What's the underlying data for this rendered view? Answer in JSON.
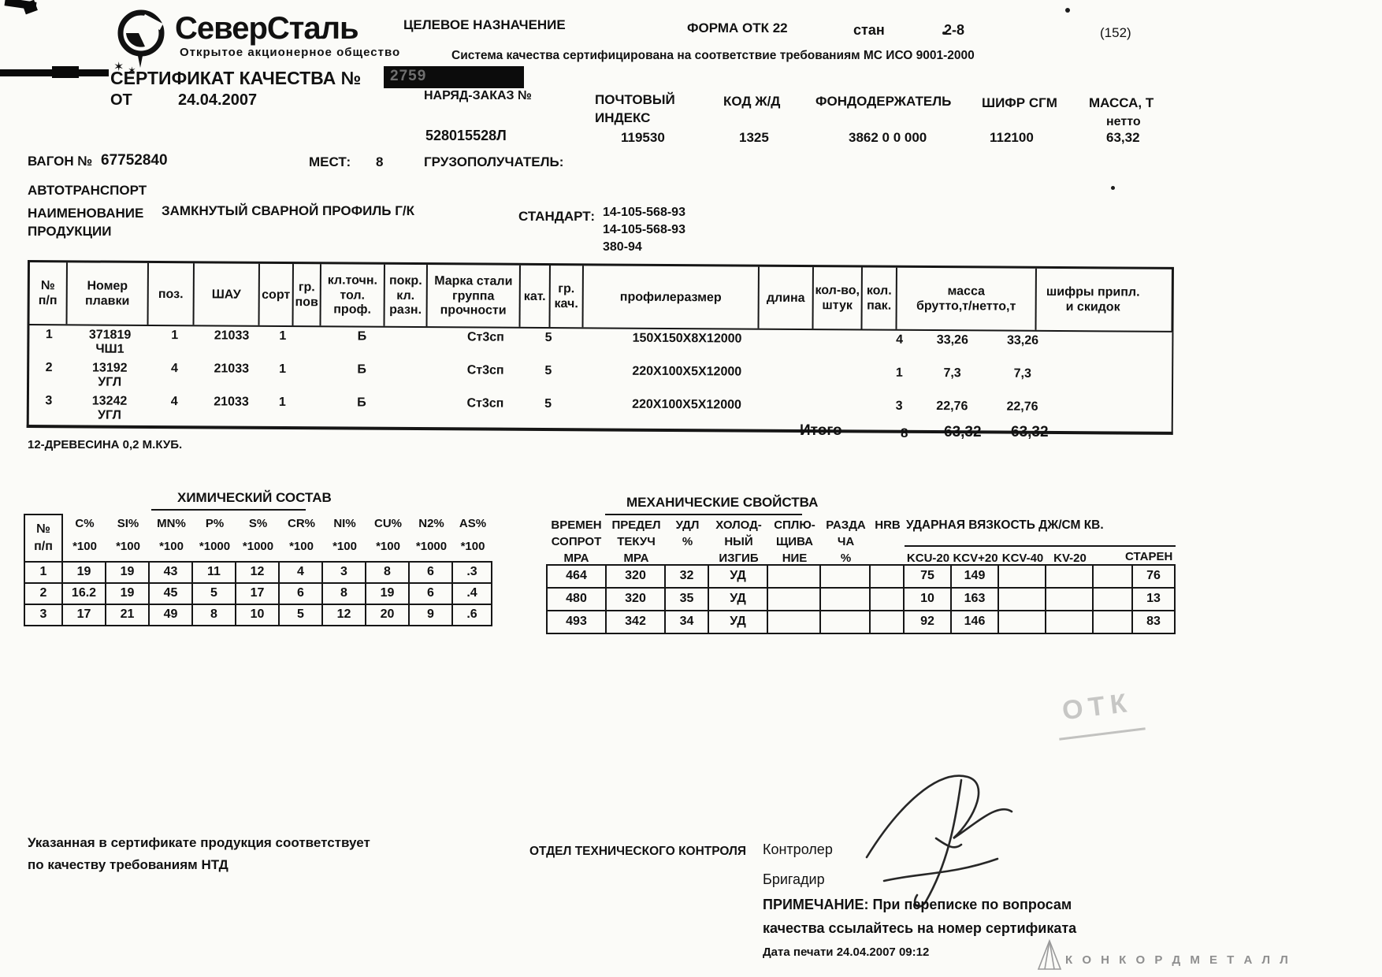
{
  "header": {
    "logo_text": "СеверСталь",
    "logo_sub": "Открытое  акционерное  общество",
    "purpose_label": "ЦЕЛЕВОЕ НАЗНАЧЕНИЕ",
    "form_label": "ФОРМА ОТК 22",
    "mill_label": "стан",
    "mill_value": "2-8",
    "page_ref": "(152)",
    "iso_line": "Система качества сертифицирована на соответствие требованиям МС ИСО 9001-2000",
    "cert_title": "СЕРТИФИКАТ КАЧЕСТВА №",
    "cert_number_visible": "2759",
    "date_label": "ОТ",
    "date_value": "24.04.2007",
    "order_label": "НАРЯД-ЗАКАЗ №",
    "order_value": "528015528Л",
    "postal_label": "ПОЧТОВЫЙ\nИНДЕКС",
    "postal_value": "119530",
    "rail_label": "КОД Ж/Д",
    "rail_value": "1325",
    "fund_label": "ФОНДОДЕРЖАТЕЛЬ",
    "fund_value": "3862 0 0 000",
    "sgm_label": "ШИФР СГМ",
    "sgm_value": "112100",
    "mass_label": "МАССА, Т",
    "mass_sub": "нетто",
    "mass_value": "63,32"
  },
  "shipment": {
    "wagon_label": "ВАГОН №",
    "wagon_value": "67752840",
    "places_label": "МЕСТ:",
    "places_value": "8",
    "consignee_label": "ГРУЗОПОЛУЧАТЕЛЬ:",
    "transport": "АВТОТРАНСПОРТ",
    "product_label": "НАИМЕНОВАНИЕ\nПРОДУКЦИИ",
    "product_value": "ЗАМКНУТЫЙ СВАРНОЙ ПРОФИЛЬ Г/К",
    "standard_label": "СТАНДАРТ:",
    "standards": [
      "14-105-568-93",
      "14-105-568-93",
      "380-94"
    ]
  },
  "main_table": {
    "headers": [
      "№\nп/п",
      "Номер\nплавки",
      "поз.",
      "ШАУ",
      "сорт",
      "гр.\nпов",
      "кл.точн.\nтол.\nпроф.",
      "покр.\nкл.\nразн.",
      "Марка стали\nгруппа\nпрочности",
      "кат.",
      "гр.\nкач.",
      "профилеразмер",
      "длина",
      "кол-во,\nштук",
      "кол.\nпак.",
      "масса\nбрутто,т/нетто,т",
      "шифры припл.\nи скидок"
    ],
    "rows": [
      [
        "1",
        "371819\nЧШ1",
        "1",
        "21033",
        "1",
        "",
        "Б",
        "",
        "Ст3сп",
        "5",
        "",
        "150X150X8X12000",
        "",
        "",
        "4",
        "33,26",
        "33,26",
        ""
      ],
      [
        "2",
        "13192\nУГЛ",
        "4",
        "21033",
        "1",
        "",
        "Б",
        "",
        "Ст3сп",
        "5",
        "",
        "220X100X5X12000",
        "",
        "",
        "1",
        "7,3",
        "7,3",
        ""
      ],
      [
        "3",
        "13242\nУГЛ",
        "4",
        "21033",
        "1",
        "",
        "Б",
        "",
        "Ст3сп",
        "5",
        "",
        "220X100X5X12000",
        "",
        "",
        "3",
        "22,76",
        "22,76",
        ""
      ]
    ],
    "total_label": "Итого",
    "total_packs": "8",
    "total_gross": "63,32",
    "total_net": "63,32"
  },
  "wood_note": "12-ДРЕВЕСИНА 0,2 М.КУБ.",
  "chem": {
    "title": "ХИМИЧЕСКИЙ СОСТАВ",
    "num_header": "№\nп/п",
    "elements": [
      "C%",
      "SI%",
      "MN%",
      "P%",
      "S%",
      "CR%",
      "NI%",
      "CU%",
      "N2%",
      "AS%"
    ],
    "multipliers": [
      "*100",
      "*100",
      "*100",
      "*1000",
      "*1000",
      "*100",
      "*100",
      "*100",
      "*1000",
      "*100"
    ],
    "rows": [
      [
        "1",
        "19",
        "19",
        "43",
        "11",
        "12",
        "4",
        "3",
        "8",
        "6",
        ".3"
      ],
      [
        "2",
        "16.2",
        "19",
        "45",
        "5",
        "17",
        "6",
        "8",
        "19",
        "6",
        ".4"
      ],
      [
        "3",
        "17",
        "21",
        "49",
        "8",
        "10",
        "5",
        "12",
        "20",
        "9",
        ".6"
      ]
    ]
  },
  "mech": {
    "title": "МЕХАНИЧЕСКИЕ СВОЙСТВА",
    "col_labels": [
      "ВРЕМЕН\nСОПРОТ\nМРА",
      "ПРЕДЕЛ\nТЕКУЧ\nМРА",
      "УДЛ\n%",
      "ХОЛОД-\nНЫЙ\nИЗГИБ",
      "СПЛЮ-\nЩИВА\nНИЕ",
      "РАЗДА\nЧА\n%",
      "HRB"
    ],
    "impact_title": "УДАРНАЯ ВЯЗКОСТЬ ДЖ/СМ КВ.",
    "impact_subs": [
      "KCU-20",
      "KCV+20",
      "KCV-40",
      "KV-20"
    ],
    "aged_label": "СТАРЕН",
    "rows": [
      [
        "464",
        "320",
        "32",
        "УД",
        "",
        "",
        "",
        "75",
        "149",
        "",
        "",
        "",
        "76"
      ],
      [
        "480",
        "320",
        "35",
        "УД",
        "",
        "",
        "",
        "10",
        "163",
        "",
        "",
        "",
        "13"
      ],
      [
        "493",
        "342",
        "34",
        "УД",
        "",
        "",
        "",
        "92",
        "146",
        "",
        "",
        "",
        "83"
      ]
    ]
  },
  "footer": {
    "conformity_line1": "Указанная в сертификате продукция соответствует",
    "conformity_line2": "по качеству требованиям НТД",
    "dept": "ОТДЕЛ ТЕХНИЧЕСКОГО КОНТРОЛЯ",
    "controller_label": "Контролер",
    "foreman_label": "Бригадир",
    "note_label": "ПРИМЕЧАНИЕ:",
    "note_line1": "ПРИМЕЧАНИЕ: При переписке по вопросам",
    "note_line2": "качества ссылайтесь на номер сертификата",
    "print_date": "Дата печати 24.04.2007 09:12",
    "stamp_text": "ОТК",
    "brand_text": "К О Н К О Р Д М Е Т А Л Л"
  }
}
